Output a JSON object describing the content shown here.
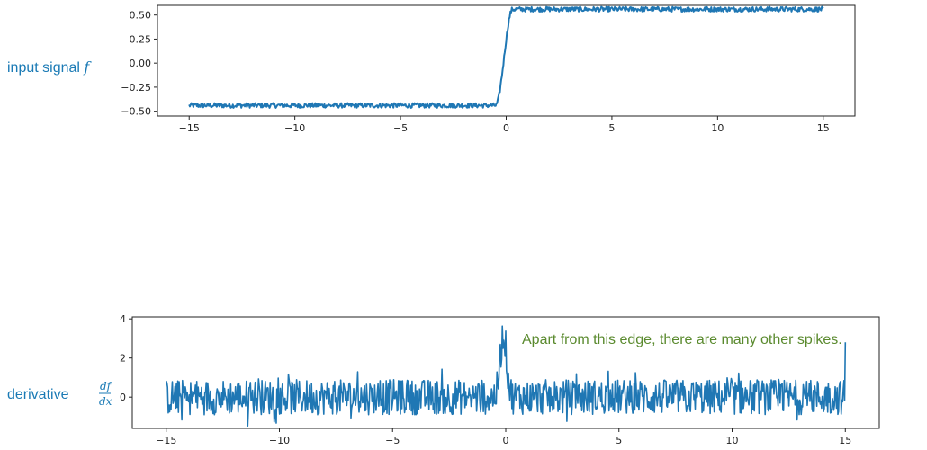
{
  "labels": {
    "input": {
      "text": "input signal ",
      "var": "f"
    },
    "derivative": {
      "text": "derivative ",
      "num": "df",
      "den": "dx"
    },
    "annotation": "Apart from this edge, there are many other spikes."
  },
  "colors": {
    "line": "#1f77b4",
    "label": "#1a7ab5",
    "annotation": "#5a8a2e"
  },
  "chart_data": [
    {
      "type": "line",
      "name": "input",
      "xlim": [
        -16.5,
        16.5
      ],
      "ylim": [
        -0.55,
        0.6
      ],
      "xticks": [
        -15,
        -10,
        -5,
        0,
        5,
        10,
        15
      ],
      "yticks": [
        -0.5,
        -0.25,
        0.0,
        0.25,
        0.5
      ],
      "ytick_labels": [
        "−0.50",
        "−0.25",
        "0.00",
        "0.25",
        "0.50"
      ],
      "xtick_labels": [
        "−15",
        "−10",
        "−5",
        "0",
        "5",
        "10",
        "15"
      ],
      "x_range": [
        -15,
        15
      ],
      "low_level": -0.44,
      "high_level": 0.56,
      "edge_x": [
        -0.5,
        0.3
      ],
      "noise_amplitude": 0.025,
      "grid": false
    },
    {
      "type": "line",
      "name": "derivative",
      "xlim": [
        -16.5,
        16.5
      ],
      "ylim": [
        -1.6,
        4.1
      ],
      "xticks": [
        -15,
        -10,
        -5,
        0,
        5,
        10,
        15
      ],
      "yticks": [
        0,
        2,
        4
      ],
      "ytick_labels": [
        "0",
        "2",
        "4"
      ],
      "xtick_labels": [
        "−15",
        "−10",
        "−5",
        "0",
        "5",
        "10",
        "15"
      ],
      "x_range": [
        -15,
        15
      ],
      "baseline": 0,
      "noise_amplitude": 0.9,
      "spike_x": -0.1,
      "spike_peak": 3.8,
      "end_spike": 2.8,
      "grid": false
    }
  ]
}
